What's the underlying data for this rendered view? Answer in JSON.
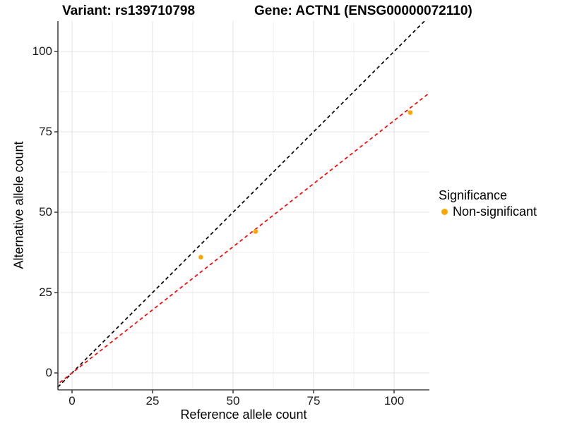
{
  "titles": {
    "variant": "Variant: rs139710798",
    "gene": "Gene: ACTN1 (ENSG00000072110)"
  },
  "chart_data": {
    "type": "scatter",
    "xlabel": "Reference allele count",
    "ylabel": "Alternative allele count",
    "x_ticks": [
      0,
      25,
      50,
      75,
      100
    ],
    "y_ticks": [
      0,
      25,
      50,
      75,
      100
    ],
    "xlim": [
      -4.5,
      111
    ],
    "ylim": [
      -5.3,
      110
    ],
    "grid": true,
    "series": [
      {
        "name": "Non-significant",
        "color": "#FFA500",
        "points": [
          {
            "x": 40,
            "y": 36
          },
          {
            "x": 57,
            "y": 44
          },
          {
            "x": 105,
            "y": 81
          }
        ]
      }
    ],
    "lines": [
      {
        "name": "identity-line",
        "style": "dashed",
        "color": "#000000",
        "slope": 1,
        "intercept": 0
      },
      {
        "name": "fit-line",
        "style": "dashed",
        "color": "#FF0000",
        "slope": 0.785,
        "intercept": 0
      }
    ],
    "legend": {
      "position": "right",
      "title": "Significance",
      "items": [
        {
          "label": "Non-significant",
          "color": "#FFA500"
        }
      ]
    },
    "colors": {
      "grid_major": "#E3E3E3",
      "grid_minor": "#F1F1F1",
      "axis_line": "#444444",
      "point": "#FFA500"
    }
  }
}
